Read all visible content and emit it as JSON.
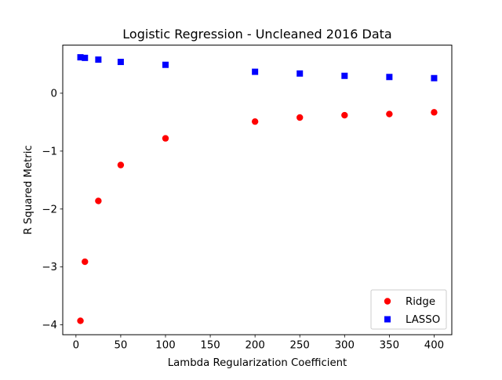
{
  "chart_data": {
    "type": "scatter",
    "title": "Logistic Regression - Uncleaned 2016 Data",
    "xlabel": "Lambda Regularization Coefficient",
    "ylabel": "R Squared Metric",
    "xlim": [
      -14.75,
      419.75
    ],
    "ylim": [
      -4.17,
      0.83
    ],
    "x_ticks": [
      0,
      50,
      100,
      150,
      200,
      250,
      300,
      350,
      400
    ],
    "x_tick_labels": [
      "0",
      "50",
      "100",
      "150",
      "200",
      "250",
      "300",
      "350",
      "400"
    ],
    "y_ticks": [
      -4,
      -3,
      -2,
      -1,
      0
    ],
    "y_tick_labels": [
      "−4",
      "−3",
      "−2",
      "−1",
      "0"
    ],
    "grid": false,
    "legend_position": "lower right",
    "series": [
      {
        "name": "Ridge",
        "marker": "circle",
        "color": "#ff0000",
        "points": [
          {
            "x": 5,
            "y": -3.93
          },
          {
            "x": 10,
            "y": -2.91
          },
          {
            "x": 25,
            "y": -1.86
          },
          {
            "x": 50,
            "y": -1.24
          },
          {
            "x": 100,
            "y": -0.78
          },
          {
            "x": 200,
            "y": -0.49
          },
          {
            "x": 250,
            "y": -0.42
          },
          {
            "x": 300,
            "y": -0.38
          },
          {
            "x": 350,
            "y": -0.36
          },
          {
            "x": 400,
            "y": -0.33
          }
        ]
      },
      {
        "name": "LASSO",
        "marker": "square",
        "color": "#0000ff",
        "points": [
          {
            "x": 5,
            "y": 0.62
          },
          {
            "x": 10,
            "y": 0.61
          },
          {
            "x": 25,
            "y": 0.58
          },
          {
            "x": 50,
            "y": 0.54
          },
          {
            "x": 100,
            "y": 0.49
          },
          {
            "x": 200,
            "y": 0.37
          },
          {
            "x": 250,
            "y": 0.34
          },
          {
            "x": 300,
            "y": 0.3
          },
          {
            "x": 350,
            "y": 0.28
          },
          {
            "x": 400,
            "y": 0.26
          }
        ]
      }
    ]
  }
}
